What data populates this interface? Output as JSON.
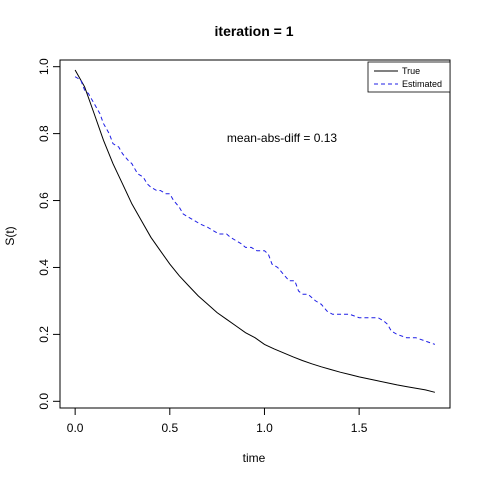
{
  "chart_data": {
    "type": "line",
    "title": "iteration =  1",
    "xlabel": "time",
    "ylabel": "S(t)",
    "xlim": [
      -0.08,
      1.98
    ],
    "ylim": [
      -0.02,
      1.02
    ],
    "x_ticks": [
      0.0,
      0.5,
      1.0,
      1.5
    ],
    "x_tick_labels": [
      "0.0",
      "0.5",
      "1.0",
      "1.5"
    ],
    "y_ticks": [
      0.0,
      0.2,
      0.4,
      0.6,
      0.8,
      1.0
    ],
    "y_tick_labels": [
      "0.0",
      "0.2",
      "0.4",
      "0.6",
      "0.8",
      "1.0"
    ],
    "grid": false,
    "legend_position": "top-right",
    "annotation": "mean-abs-diff =  0.13",
    "series": [
      {
        "name": "True",
        "color": "#000000",
        "line_style": "solid",
        "x": [
          0.0,
          0.05,
          0.1,
          0.15,
          0.2,
          0.25,
          0.3,
          0.35,
          0.4,
          0.45,
          0.5,
          0.55,
          0.6,
          0.65,
          0.7,
          0.75,
          0.8,
          0.85,
          0.9,
          0.95,
          1.0,
          1.05,
          1.1,
          1.15,
          1.2,
          1.25,
          1.3,
          1.35,
          1.4,
          1.45,
          1.5,
          1.55,
          1.6,
          1.65,
          1.7,
          1.75,
          1.8,
          1.85,
          1.9
        ],
        "y": [
          0.99,
          0.94,
          0.86,
          0.78,
          0.71,
          0.65,
          0.59,
          0.54,
          0.49,
          0.45,
          0.41,
          0.375,
          0.345,
          0.315,
          0.29,
          0.265,
          0.245,
          0.225,
          0.205,
          0.19,
          0.17,
          0.157,
          0.145,
          0.133,
          0.122,
          0.112,
          0.103,
          0.095,
          0.087,
          0.08,
          0.073,
          0.067,
          0.061,
          0.055,
          0.049,
          0.044,
          0.039,
          0.034,
          0.027
        ]
      },
      {
        "name": "Estimated",
        "color": "#1f1fe6",
        "line_style": "dashed",
        "x": [
          0.0,
          0.03,
          0.05,
          0.07,
          0.1,
          0.13,
          0.15,
          0.18,
          0.2,
          0.23,
          0.25,
          0.28,
          0.3,
          0.33,
          0.36,
          0.38,
          0.4,
          0.43,
          0.45,
          0.48,
          0.5,
          0.52,
          0.55,
          0.57,
          0.6,
          0.63,
          0.66,
          0.7,
          0.73,
          0.76,
          0.8,
          0.82,
          0.85,
          0.88,
          0.9,
          0.93,
          0.96,
          1.0,
          1.02,
          1.04,
          1.07,
          1.1,
          1.13,
          1.16,
          1.18,
          1.2,
          1.23,
          1.27,
          1.3,
          1.33,
          1.36,
          1.4,
          1.45,
          1.5,
          1.55,
          1.6,
          1.63,
          1.65,
          1.67,
          1.7,
          1.75,
          1.8,
          1.85,
          1.9
        ],
        "y": [
          0.97,
          0.96,
          0.93,
          0.92,
          0.89,
          0.86,
          0.83,
          0.8,
          0.77,
          0.76,
          0.74,
          0.72,
          0.71,
          0.68,
          0.67,
          0.65,
          0.64,
          0.63,
          0.63,
          0.62,
          0.62,
          0.6,
          0.58,
          0.56,
          0.55,
          0.54,
          0.53,
          0.52,
          0.51,
          0.5,
          0.5,
          0.49,
          0.48,
          0.47,
          0.46,
          0.46,
          0.45,
          0.45,
          0.44,
          0.41,
          0.4,
          0.38,
          0.36,
          0.36,
          0.33,
          0.32,
          0.32,
          0.3,
          0.29,
          0.27,
          0.26,
          0.26,
          0.26,
          0.25,
          0.25,
          0.25,
          0.24,
          0.23,
          0.21,
          0.2,
          0.19,
          0.19,
          0.18,
          0.17
        ]
      }
    ]
  }
}
